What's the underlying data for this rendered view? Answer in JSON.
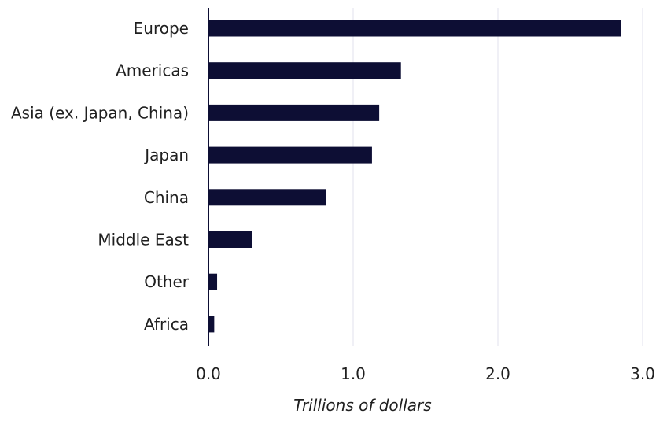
{
  "chart_data": {
    "type": "bar",
    "orientation": "horizontal",
    "categories": [
      "Europe",
      "Americas",
      "Asia (ex. Japan, China)",
      "Japan",
      "China",
      "Middle East",
      "Other",
      "Africa"
    ],
    "values": [
      2.85,
      1.33,
      1.18,
      1.13,
      0.81,
      0.3,
      0.06,
      0.04
    ],
    "title": "",
    "xlabel": "Trillions of dollars",
    "ylabel": "",
    "xlim": [
      0,
      3.0
    ],
    "x_ticks": [
      0.0,
      1.0,
      2.0,
      3.0
    ],
    "x_tick_labels": [
      "0.0",
      "1.0",
      "2.0",
      "3.0"
    ],
    "grid": "vertical",
    "legend": "none",
    "bar_color": "#0d0e34",
    "grid_color": "#e1e1ec",
    "axis_color": "#0d0e34"
  }
}
